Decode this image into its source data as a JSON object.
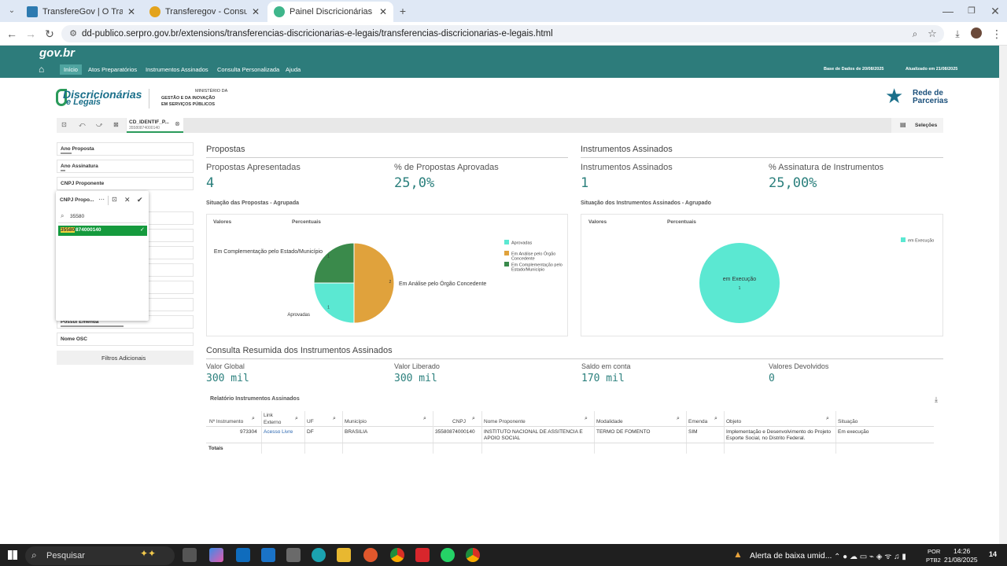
{
  "browser": {
    "tabs": [
      {
        "title": "TransfereGov | O TransfereGov"
      },
      {
        "title": "Transferegov - Consultar Propo"
      },
      {
        "title": "Painel Discricionárias",
        "active": true
      }
    ],
    "url": "dd-publico.serpro.gov.br/extensions/transferencias-discricionarias-e-legais/transferencias-discricionarias-e-legais.html"
  },
  "gov": {
    "logo": "gov.br",
    "nav": [
      "Início",
      "Atos Preparatórios",
      "Instrumentos Assinados",
      "Consulta Personalizada",
      "Ajuda"
    ],
    "base_date": "Base de Dados de 20/08/2025",
    "updated": "Atualizado em 21/08/2025"
  },
  "brand": {
    "logo_top": "Discricionárias",
    "logo_bottom": "e Legais",
    "ministry_l1": "MINISTÉRIO DA",
    "ministry_l2": "GESTÃO E DA INOVAÇÃO",
    "ministry_l3": "EM SERVIÇOS PÚBLICOS",
    "partner_l1": "Rede de",
    "partner_l2": "Parcerias"
  },
  "selection": {
    "chip_title": "CD_IDENTIF_P...",
    "chip_value": "35580874000140",
    "selections_label": "Seleções"
  },
  "filters": [
    "Ano Proposta",
    "Ano Assinatura",
    "CNPJ Proponente",
    "Possui Emenda",
    "Nome OSC"
  ],
  "filters_more": "Filtros Adicionais",
  "popup": {
    "title": "CNPJ Propo...",
    "search": "35580",
    "item_highlight": "35580",
    "item_rest": "874000140"
  },
  "propostas": {
    "section": "Propostas",
    "kpi1_label": "Propostas Apresentadas",
    "kpi1_value": "4",
    "kpi2_label": "% de Propostas Aprovadas",
    "kpi2_value": "25,0%",
    "chart_title": "Situação das Propostas - Agrupada",
    "tab_valores": "Valores",
    "tab_percentuais": "Percentuais"
  },
  "instrumentos": {
    "section": "Instrumentos Assinados",
    "kpi1_label": "Instrumentos Assinados",
    "kpi1_value": "1",
    "kpi2_label": "% Assinatura de Instrumentos",
    "kpi2_value": "25,00%",
    "chart_title": "Situação dos Instrumentos Assinados - Agrupado",
    "tab_valores": "Valores",
    "tab_percentuais": "Percentuais"
  },
  "chart_data": [
    {
      "type": "pie",
      "series": [
        {
          "name": "Em Análise pelo Órgão Concedente",
          "value": 2,
          "color": "#e0a23c"
        },
        {
          "name": "Aprovadas",
          "value": 1,
          "color": "#5be8d2"
        },
        {
          "name": "Em Complementação pelo Estado/Município",
          "value": 1,
          "color": "#3a8a4b"
        }
      ],
      "legend": [
        {
          "name": "Aprovadas",
          "color": "#5be8d2"
        },
        {
          "name": "Em Análise pelo Órgão Concedente",
          "color": "#e0a23c"
        },
        {
          "name": "Em Complementação pelo Estado/Município",
          "color": "#3a8a4b"
        }
      ],
      "legend_position": "right"
    },
    {
      "type": "pie",
      "series": [
        {
          "name": "em Execução",
          "value": 1,
          "color": "#5be8d2"
        }
      ],
      "legend": [
        {
          "name": "em Execução",
          "color": "#5be8d2"
        }
      ],
      "legend_position": "right"
    }
  ],
  "consulta": {
    "section": "Consulta Resumida dos Instrumentos Assinados",
    "items": [
      {
        "label": "Valor Global",
        "value": "300 mil"
      },
      {
        "label": "Valor Liberado",
        "value": "300 mil"
      },
      {
        "label": "Saldo em conta",
        "value": "170 mil"
      },
      {
        "label": "Valores Devolvidos",
        "value": "0"
      }
    ]
  },
  "relatorio": {
    "title": "Relatório Instrumentos Assinados",
    "headers": [
      "Nº Instrumento",
      "Link Externo",
      "UF",
      "Município",
      "CNPJ",
      "Nome Proponente",
      "Modalidade",
      "Emenda",
      "Objeto",
      "Situação"
    ],
    "row": {
      "instrumento": "973304",
      "link": "Acesso Livre",
      "uf": "DF",
      "municipio": "BRASILIA",
      "cnpj": "35580874000140",
      "proponente": "INSTITUTO NACIONAL DE ASSITENCIA E APOIO SOCIAL",
      "modalidade": "TERMO DE FOMENTO",
      "emenda": "SIM",
      "objeto": "Implementação e Desenvolvimento do Projeto Esporte Social, no Distrito Federal.",
      "situacao": "Em execução"
    },
    "totals": "Totais"
  },
  "taskbar": {
    "search": "Pesquisar",
    "alert": "Alerta de baixa umid...",
    "lang1": "POR",
    "lang2": "PTB2",
    "time": "14:26",
    "date": "21/08/2025",
    "notif": "14"
  }
}
